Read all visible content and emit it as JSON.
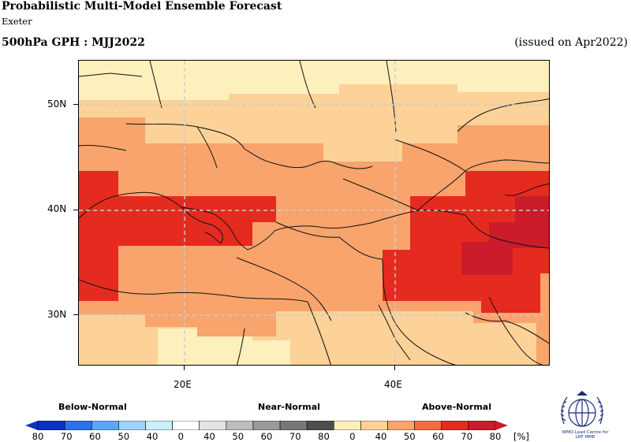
{
  "header": {
    "title": "Probabilistic Multi-Model Ensemble Forecast",
    "subtitle": "Exeter",
    "product": "500hPa GPH : MJJ2022",
    "issued": "(issued on Apr2022)"
  },
  "map": {
    "lat_labels": [
      "50N",
      "40N",
      "30N"
    ],
    "lon_labels": [
      "20E",
      "40E"
    ]
  },
  "legend": {
    "categories": [
      "Below-Normal",
      "Near-Normal",
      "Above-Normal"
    ],
    "scale_labels": [
      "80",
      "70",
      "60",
      "50",
      "40",
      "0",
      "40",
      "50",
      "60",
      "70",
      "80",
      "0",
      "40",
      "50",
      "60",
      "70",
      "80"
    ],
    "unit": "[%]",
    "colors": {
      "below": [
        "#0c31c4",
        "#2e6ff0",
        "#5fa5f5",
        "#9fd2fa",
        "#c9f0fc"
      ],
      "near": [
        "#ffffff",
        "#e3e3e3",
        "#bdbdbd",
        "#9a9a9a",
        "#777777",
        "#4d4d4d"
      ],
      "above": [
        "#ffffff",
        "#fdf0bd",
        "#fcd298",
        "#f8a46c",
        "#f26c44",
        "#e52b20",
        "#cb1c2c"
      ]
    }
  },
  "logo": {
    "caption_line1": "WMO Lead Centre for",
    "caption_line2": "LRF MME"
  }
}
